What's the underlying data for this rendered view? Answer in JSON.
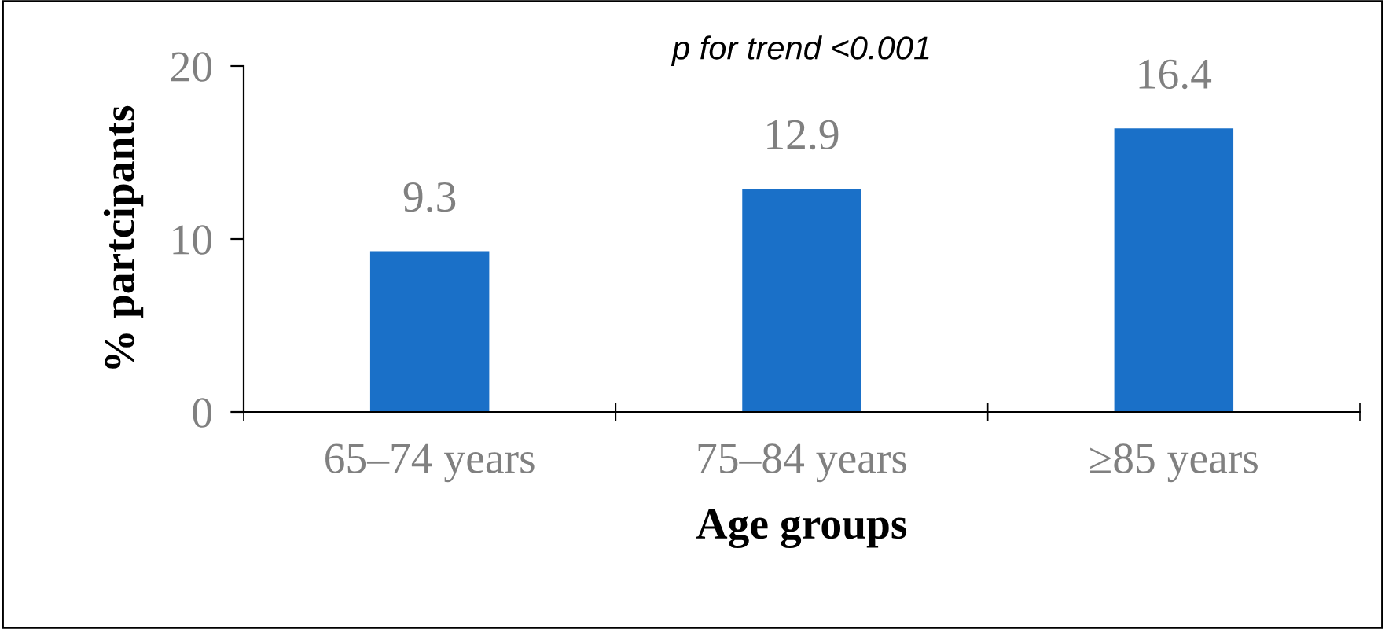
{
  "chart_data": {
    "type": "bar",
    "categories": [
      "65–74 years",
      "75–84 years",
      "≥85 years"
    ],
    "values": [
      9.3,
      12.9,
      16.4
    ],
    "color": "#1a70c8",
    "xlabel": "Age groups",
    "ylabel": "% partcipants",
    "ylim": [
      0,
      20
    ],
    "yticks": [
      0,
      10,
      20
    ],
    "data_labels": true,
    "grid": false,
    "annotations": [
      "p for trend <0.001"
    ]
  }
}
